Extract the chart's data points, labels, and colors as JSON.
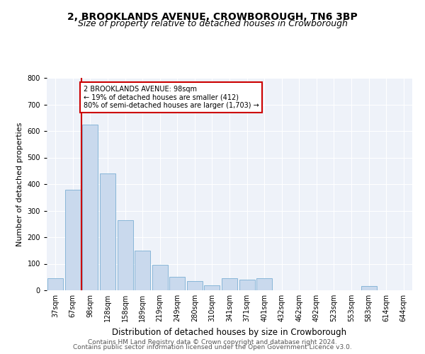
{
  "title": "2, BROOKLANDS AVENUE, CROWBOROUGH, TN6 3BP",
  "subtitle": "Size of property relative to detached houses in Crowborough",
  "xlabel": "Distribution of detached houses by size in Crowborough",
  "ylabel": "Number of detached properties",
  "categories": [
    "37sqm",
    "67sqm",
    "98sqm",
    "128sqm",
    "158sqm",
    "189sqm",
    "219sqm",
    "249sqm",
    "280sqm",
    "310sqm",
    "341sqm",
    "371sqm",
    "401sqm",
    "432sqm",
    "462sqm",
    "492sqm",
    "523sqm",
    "553sqm",
    "583sqm",
    "614sqm",
    "644sqm"
  ],
  "values": [
    45,
    380,
    625,
    440,
    265,
    150,
    95,
    50,
    35,
    20,
    45,
    40,
    45,
    0,
    0,
    0,
    0,
    0,
    15,
    0,
    0
  ],
  "bar_color": "#c9d9ed",
  "bar_edge_color": "#7bafd4",
  "red_line_index": 2,
  "annotation_text": "2 BROOKLANDS AVENUE: 98sqm\n← 19% of detached houses are smaller (412)\n80% of semi-detached houses are larger (1,703) →",
  "annotation_box_color": "#ffffff",
  "annotation_box_edge_color": "#cc0000",
  "red_line_color": "#cc0000",
  "ylim": [
    0,
    800
  ],
  "yticks": [
    0,
    100,
    200,
    300,
    400,
    500,
    600,
    700,
    800
  ],
  "background_color": "#eef2f9",
  "footer_line1": "Contains HM Land Registry data © Crown copyright and database right 2024.",
  "footer_line2": "Contains public sector information licensed under the Open Government Licence v3.0.",
  "title_fontsize": 10,
  "subtitle_fontsize": 9,
  "xlabel_fontsize": 8.5,
  "ylabel_fontsize": 8,
  "tick_fontsize": 7,
  "footer_fontsize": 6.5
}
